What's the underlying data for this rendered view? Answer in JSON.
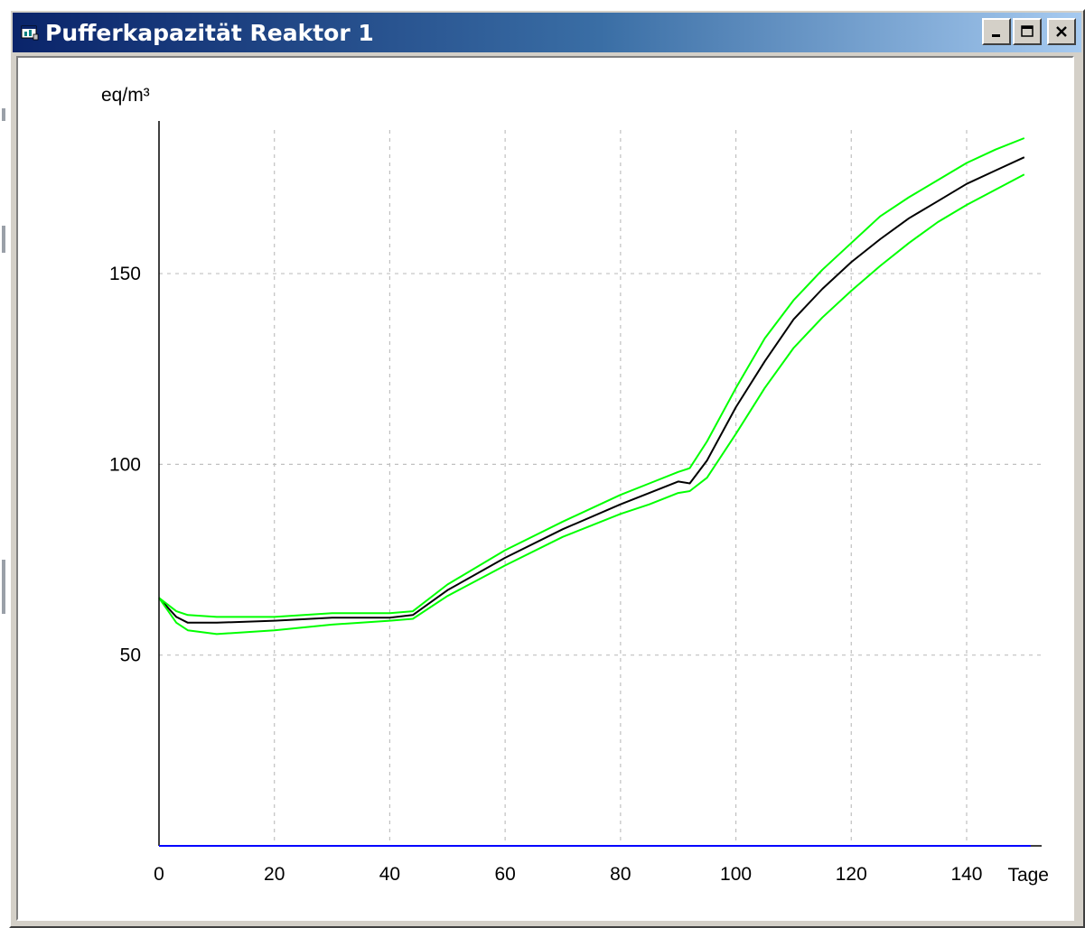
{
  "window": {
    "title": "Pufferkapazität Reaktor 1",
    "icon": "chart-window-icon",
    "buttons": [
      {
        "name": "minimize-button",
        "icon": "minimize-icon"
      },
      {
        "name": "maximize-button",
        "icon": "maximize-icon"
      },
      {
        "name": "close-button",
        "icon": "close-icon"
      }
    ]
  },
  "colors": {
    "titlebar_start": "#0a246a",
    "titlebar_end": "#a6caf0",
    "main_series": "#000000",
    "bound_series": "#00ff00",
    "baseline": "#0000ff",
    "grid": "#c0c0c0"
  },
  "chart_data": {
    "type": "line",
    "title": "",
    "xlabel": "Tage",
    "ylabel": "eq/m³",
    "xlim": [
      0,
      153
    ],
    "ylim": [
      0,
      190
    ],
    "xticks": [
      0,
      20,
      40,
      60,
      80,
      100,
      120,
      140
    ],
    "yticks": [
      50,
      100,
      150
    ],
    "grid": true,
    "series": [
      {
        "color": "#000000",
        "points": [
          [
            0,
            65
          ],
          [
            3,
            60
          ],
          [
            5,
            58.5
          ],
          [
            10,
            58.5
          ],
          [
            20,
            59
          ],
          [
            30,
            59.8
          ],
          [
            40,
            59.8
          ],
          [
            44,
            60.5
          ],
          [
            50,
            67
          ],
          [
            60,
            75.5
          ],
          [
            70,
            83
          ],
          [
            80,
            89.5
          ],
          [
            85,
            92.5
          ],
          [
            90,
            95.5
          ],
          [
            92,
            95
          ],
          [
            95,
            101
          ],
          [
            100,
            115
          ],
          [
            105,
            127
          ],
          [
            110,
            138
          ],
          [
            115,
            146
          ],
          [
            120,
            153
          ],
          [
            125,
            159
          ],
          [
            130,
            164.5
          ],
          [
            135,
            169
          ],
          [
            140,
            173.5
          ],
          [
            145,
            177
          ],
          [
            150,
            180.5
          ]
        ]
      },
      {
        "color": "#00ff00",
        "points": [
          [
            0,
            65
          ],
          [
            3,
            61.5
          ],
          [
            5,
            60.5
          ],
          [
            10,
            60
          ],
          [
            20,
            60
          ],
          [
            30,
            61
          ],
          [
            40,
            61
          ],
          [
            44,
            61.5
          ],
          [
            50,
            68.5
          ],
          [
            60,
            77.5
          ],
          [
            70,
            85
          ],
          [
            80,
            92
          ],
          [
            85,
            95
          ],
          [
            90,
            98
          ],
          [
            92,
            99
          ],
          [
            95,
            106
          ],
          [
            100,
            120
          ],
          [
            105,
            133
          ],
          [
            110,
            143
          ],
          [
            115,
            151
          ],
          [
            120,
            158
          ],
          [
            125,
            165
          ],
          [
            130,
            170
          ],
          [
            135,
            174.5
          ],
          [
            140,
            179
          ],
          [
            145,
            182.5
          ],
          [
            150,
            185.5
          ]
        ]
      },
      {
        "color": "#00ff00",
        "points": [
          [
            0,
            65
          ],
          [
            3,
            58.5
          ],
          [
            5,
            56.5
          ],
          [
            10,
            55.5
          ],
          [
            20,
            56.5
          ],
          [
            30,
            58
          ],
          [
            40,
            59
          ],
          [
            44,
            59.5
          ],
          [
            50,
            65.5
          ],
          [
            60,
            73.5
          ],
          [
            70,
            81
          ],
          [
            80,
            87
          ],
          [
            85,
            89.5
          ],
          [
            90,
            92.5
          ],
          [
            92,
            93
          ],
          [
            95,
            96.5
          ],
          [
            100,
            108
          ],
          [
            105,
            120
          ],
          [
            110,
            130.5
          ],
          [
            115,
            138.5
          ],
          [
            120,
            145.5
          ],
          [
            125,
            152
          ],
          [
            130,
            158
          ],
          [
            135,
            163.5
          ],
          [
            140,
            168
          ],
          [
            145,
            172
          ],
          [
            150,
            176
          ]
        ]
      }
    ]
  }
}
